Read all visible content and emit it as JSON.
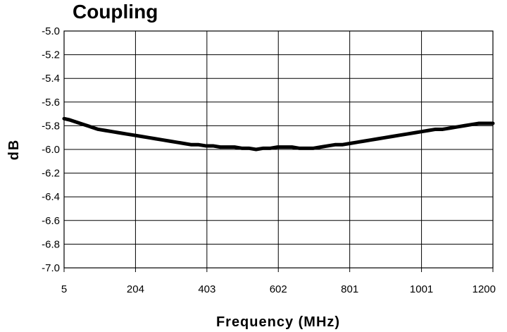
{
  "chart_data": {
    "type": "line",
    "title": "Coupling",
    "xlabel": "Frequency (MHz)",
    "ylabel": "dB",
    "x_ticks": [
      "5",
      "204",
      "403",
      "602",
      "801",
      "1001",
      "1200"
    ],
    "y_ticks": [
      "-5.0",
      "-5.2",
      "-5.4",
      "-5.6",
      "-5.8",
      "-6.0",
      "-6.2",
      "-6.4",
      "-6.6",
      "-6.8",
      "-7.0"
    ],
    "xlim": [
      5,
      1200
    ],
    "ylim": [
      -7.0,
      -5.0
    ],
    "grid": true,
    "legend": "none",
    "series": [
      {
        "color": "#000000",
        "x": [
          5,
          20,
          40,
          60,
          80,
          100,
          120,
          140,
          160,
          180,
          200,
          220,
          240,
          260,
          280,
          300,
          320,
          340,
          360,
          380,
          400,
          420,
          440,
          460,
          480,
          500,
          520,
          540,
          560,
          580,
          600,
          620,
          640,
          660,
          680,
          700,
          720,
          740,
          760,
          780,
          800,
          820,
          840,
          860,
          880,
          900,
          920,
          940,
          960,
          980,
          1000,
          1020,
          1040,
          1060,
          1080,
          1100,
          1120,
          1140,
          1160,
          1180,
          1200
        ],
        "y": [
          -5.74,
          -5.75,
          -5.77,
          -5.79,
          -5.81,
          -5.83,
          -5.84,
          -5.85,
          -5.86,
          -5.87,
          -5.88,
          -5.89,
          -5.9,
          -5.91,
          -5.92,
          -5.93,
          -5.94,
          -5.95,
          -5.96,
          -5.96,
          -5.97,
          -5.97,
          -5.98,
          -5.98,
          -5.98,
          -5.99,
          -5.99,
          -6.0,
          -5.99,
          -5.99,
          -5.98,
          -5.98,
          -5.98,
          -5.99,
          -5.99,
          -5.99,
          -5.98,
          -5.97,
          -5.96,
          -5.96,
          -5.95,
          -5.94,
          -5.93,
          -5.92,
          -5.91,
          -5.9,
          -5.89,
          -5.88,
          -5.87,
          -5.86,
          -5.85,
          -5.84,
          -5.83,
          -5.83,
          -5.82,
          -5.81,
          -5.8,
          -5.79,
          -5.78,
          -5.78,
          -5.78
        ]
      }
    ]
  }
}
